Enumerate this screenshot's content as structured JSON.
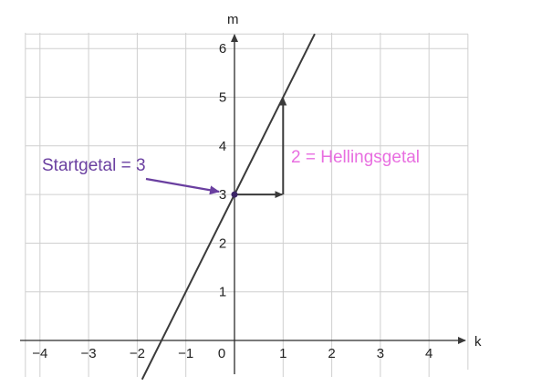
{
  "chart_data": {
    "type": "line",
    "xlabel": "k",
    "ylabel": "m",
    "xlim": [
      -4.3,
      4.7
    ],
    "ylim": [
      -0.6,
      6.4
    ],
    "x_ticks": [
      -4,
      -3,
      -2,
      -1,
      0,
      1,
      2,
      3,
      4
    ],
    "x_tick_labels": [
      "−4",
      "−3",
      "−2",
      "−1",
      "0",
      "1",
      "2",
      "3",
      "4"
    ],
    "y_ticks": [
      1,
      2,
      3,
      4,
      5,
      6
    ],
    "y_tick_labels": [
      "1",
      "2",
      "3",
      "4",
      "5",
      "6"
    ],
    "grid": true,
    "line": {
      "slope": 2,
      "intercept": 3,
      "x_from": -1.9,
      "x_to": 1.65
    },
    "start_point": {
      "x": 0,
      "y": 3
    },
    "run_arrow": {
      "from": [
        0,
        3
      ],
      "to": [
        1,
        3
      ]
    },
    "rise_arrow": {
      "from": [
        1,
        3
      ],
      "to": [
        1,
        5
      ]
    },
    "annotations": {
      "start": "Startgetal = 3",
      "slope": "2 = Hellingsgetal"
    }
  },
  "colors": {
    "line": "#3a3a3a",
    "start": "#6a3fa0",
    "slope": "#e86ee0",
    "grid": "#cfcfcf"
  }
}
